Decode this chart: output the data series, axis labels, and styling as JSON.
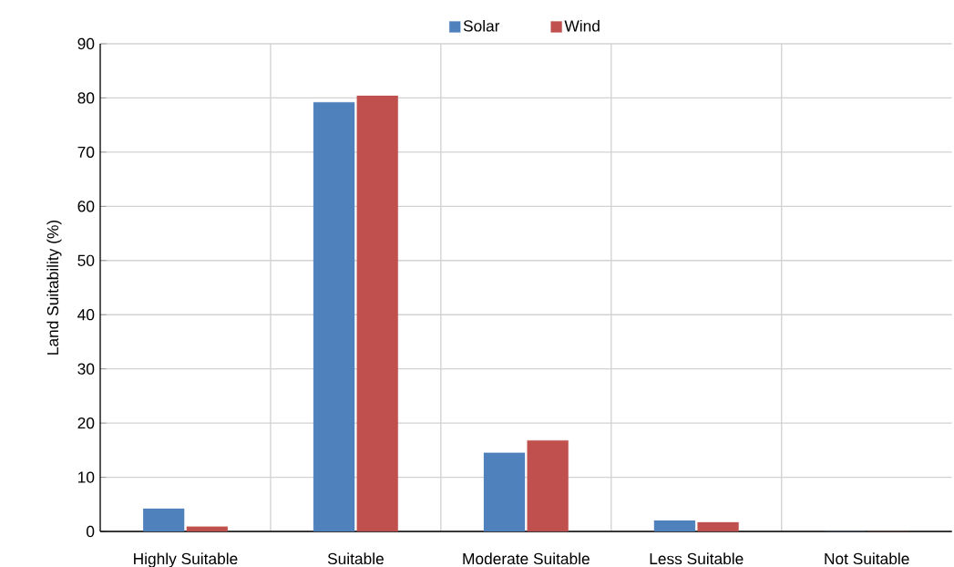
{
  "chart_data": {
    "type": "bar",
    "ylabel": "Land Suitability (%)",
    "categories": [
      "Highly Suitable",
      "Suitable",
      "Moderate Suitable",
      "Less Suitable",
      "Not Suitable"
    ],
    "series": [
      {
        "name": "Solar",
        "color": "#4f81bd",
        "values": [
          4.2,
          79.2,
          14.5,
          2.0,
          0
        ]
      },
      {
        "name": "Wind",
        "color": "#c0504d",
        "values": [
          0.9,
          80.4,
          16.8,
          1.7,
          0
        ]
      }
    ],
    "ylim": [
      0,
      90
    ],
    "yticks": [
      0,
      10,
      20,
      30,
      40,
      50,
      60,
      70,
      80,
      90
    ],
    "grid": true,
    "legend": "top"
  }
}
